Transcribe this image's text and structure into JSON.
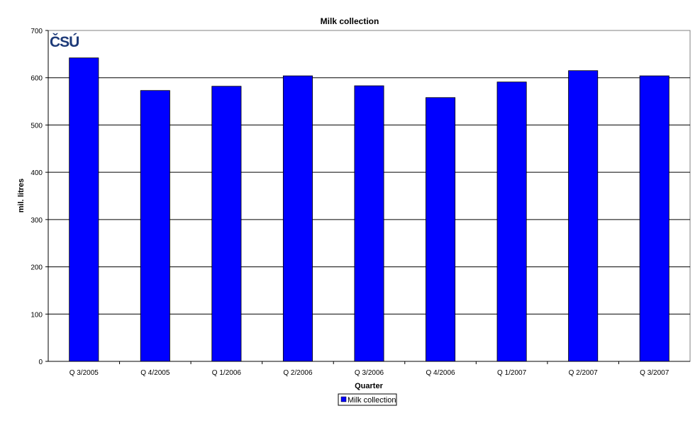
{
  "chart_data": {
    "type": "bar",
    "title": "Milk collection",
    "xlabel": "Quarter",
    "ylabel": "mil. litres",
    "categories": [
      "Q 3/2005",
      "Q 4/2005",
      "Q 1/2006",
      "Q 2/2006",
      "Q 3/2006",
      "Q 4/2006",
      "Q 1/2007",
      "Q 2/2007",
      "Q 3/2007"
    ],
    "series": [
      {
        "name": "Milk collection",
        "color": "#0000ff",
        "values": [
          642,
          573,
          582,
          604,
          583,
          558,
          591,
          615,
          604
        ]
      }
    ],
    "ylim": [
      0,
      700
    ],
    "yticks": [
      0,
      100,
      200,
      300,
      400,
      500,
      600,
      700
    ],
    "grid": true,
    "legend": "bottom-center",
    "logo": "ČSÚ"
  }
}
